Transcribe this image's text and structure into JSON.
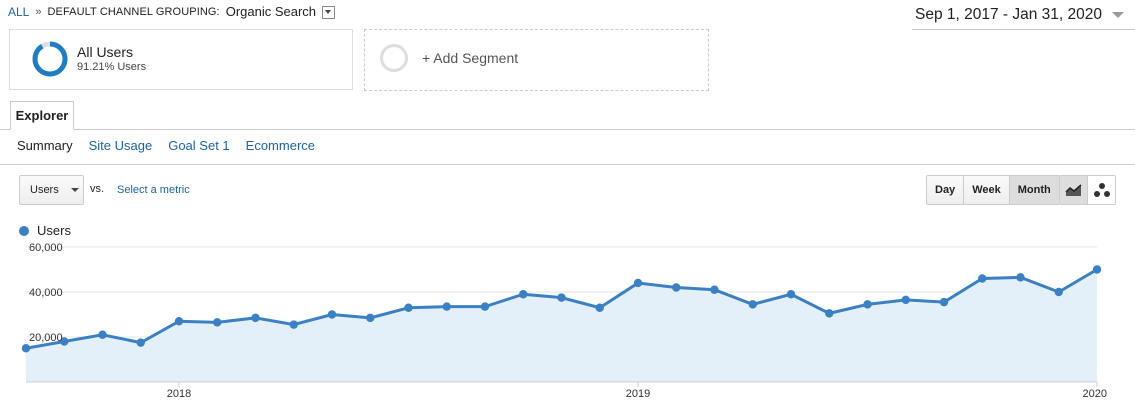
{
  "breadcrumb": {
    "all": "ALL",
    "separator": "»",
    "dimension": "DEFAULT CHANNEL GROUPING:",
    "value": "Organic Search"
  },
  "date_range": "Sep 1, 2017 - Jan 31, 2020",
  "segments": {
    "active": {
      "name": "All Users",
      "percent": "91.21% Users",
      "percent_value": 91.21
    },
    "add_label": "+ Add Segment"
  },
  "tabs": {
    "explorer": "Explorer"
  },
  "subtabs": [
    "Summary",
    "Site Usage",
    "Goal Set 1",
    "Ecommerce"
  ],
  "controls": {
    "metric": "Users",
    "vs": "vs.",
    "select_metric": "Select a metric",
    "time": [
      "Day",
      "Week",
      "Month"
    ],
    "time_selected": "Month",
    "views": [
      "line-chart-icon",
      "motion-chart-icon"
    ]
  },
  "colors": {
    "series": "#3b80c3",
    "fill": "#e4f0f9",
    "link": "#1a64a6"
  },
  "chart_data": {
    "type": "area",
    "series": [
      {
        "name": "Users",
        "values": [
          15000,
          18000,
          21000,
          17500,
          27000,
          26500,
          28500,
          25500,
          30000,
          28500,
          33000,
          33500,
          33500,
          39000,
          37500,
          33000,
          44000,
          42000,
          41000,
          34500,
          39000,
          30500,
          34500,
          36500,
          35500,
          46000,
          46500,
          40000,
          50000
        ]
      }
    ],
    "x_tick_labels": [
      "2018",
      "2019",
      "2020"
    ],
    "y_tick_labels": [
      "20,000",
      "40,000",
      "60,000"
    ],
    "ylim": [
      0,
      60000
    ],
    "grid": true,
    "legend": "top-left"
  }
}
